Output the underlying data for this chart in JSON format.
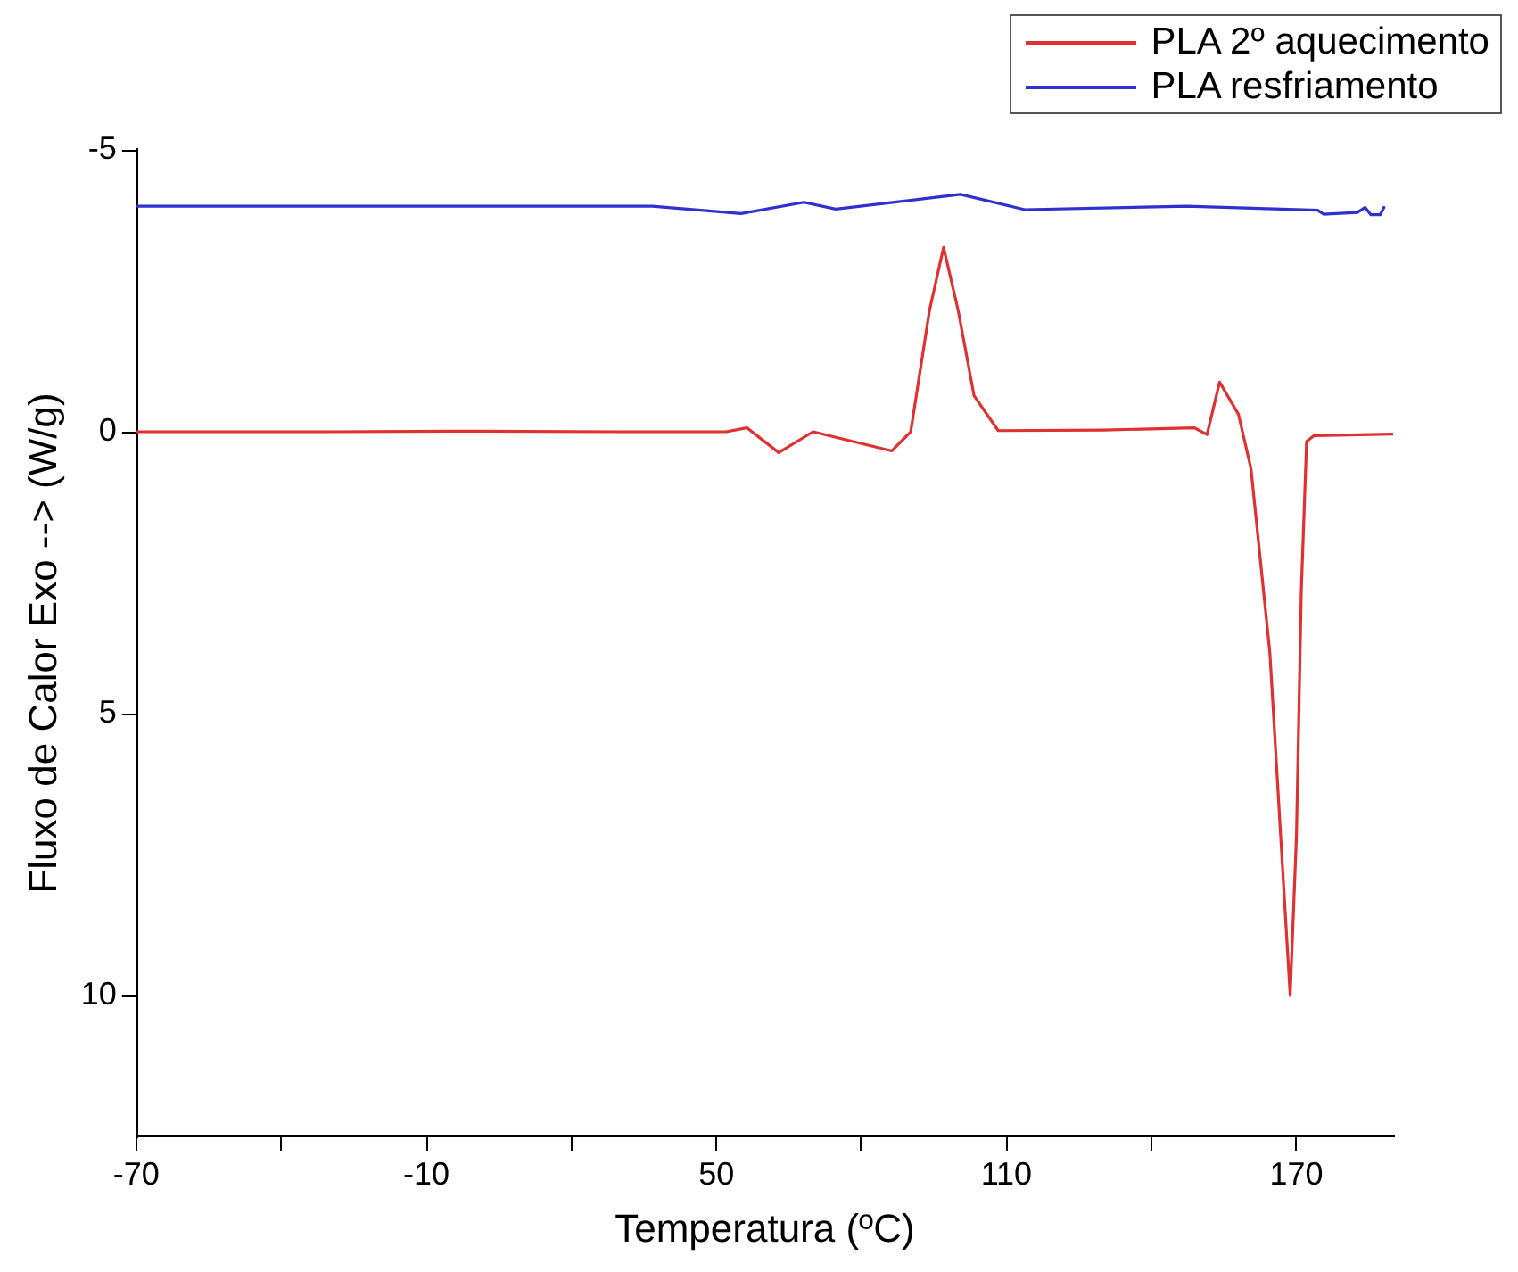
{
  "chart_data": {
    "type": "line",
    "xlabel": "Temperatura (ºC)",
    "ylabel": "Fluxo de Calor Exo --> (W/g)",
    "xlim": [
      -70,
      190
    ],
    "ylim": [
      12.5,
      -5
    ],
    "xticks": [
      -70,
      {
        "value": -40,
        "label": null
      },
      -10,
      {
        "value": 20,
        "label": null
      },
      50,
      {
        "value": 80,
        "label": null
      },
      110,
      {
        "value": 140,
        "label": null
      },
      170
    ],
    "yticks": [
      -5,
      0,
      5,
      10
    ],
    "grid": false,
    "legend": "top right",
    "marker": "none",
    "line_style": "solid",
    "series": [
      {
        "name": "PLA 2º aquecimento",
        "color": "#e03030",
        "x": [
          -70,
          -30,
          0,
          30,
          52,
          56.3,
          62.9,
          70,
          86.3,
          90.2,
          94.1,
          97,
          100,
          103.3,
          108.3,
          130,
          148.9,
          151.5,
          154.1,
          158,
          160.6,
          164.5,
          167.1,
          168.7,
          170,
          171,
          172.1,
          173.6,
          190
        ],
        "values": [
          0,
          0,
          -0.01,
          0,
          0,
          -0.07,
          0.37,
          0,
          0.34,
          0,
          -2.16,
          -3.27,
          -2.16,
          -0.64,
          -0.02,
          -0.03,
          -0.07,
          0.05,
          -0.88,
          -0.31,
          0.66,
          3.92,
          7.7,
          10,
          7.17,
          2.83,
          0.17,
          0.07,
          0.04
        ]
      },
      {
        "name": "PLA resfriamento",
        "color": "#3030d0",
        "x": [
          -70,
          -30,
          0,
          36.8,
          55.1,
          68.1,
          74.7,
          100.5,
          113.8,
          147.4,
          174.4,
          175.6,
          182.6,
          184.2,
          185.4,
          187.3,
          188.1
        ],
        "values": [
          -4,
          -4,
          -4,
          -4,
          -3.87,
          -4.07,
          -3.95,
          -4.21,
          -3.94,
          -4,
          -3.93,
          -3.86,
          -3.89,
          -3.98,
          -3.85,
          -3.85,
          -3.98
        ]
      }
    ]
  }
}
